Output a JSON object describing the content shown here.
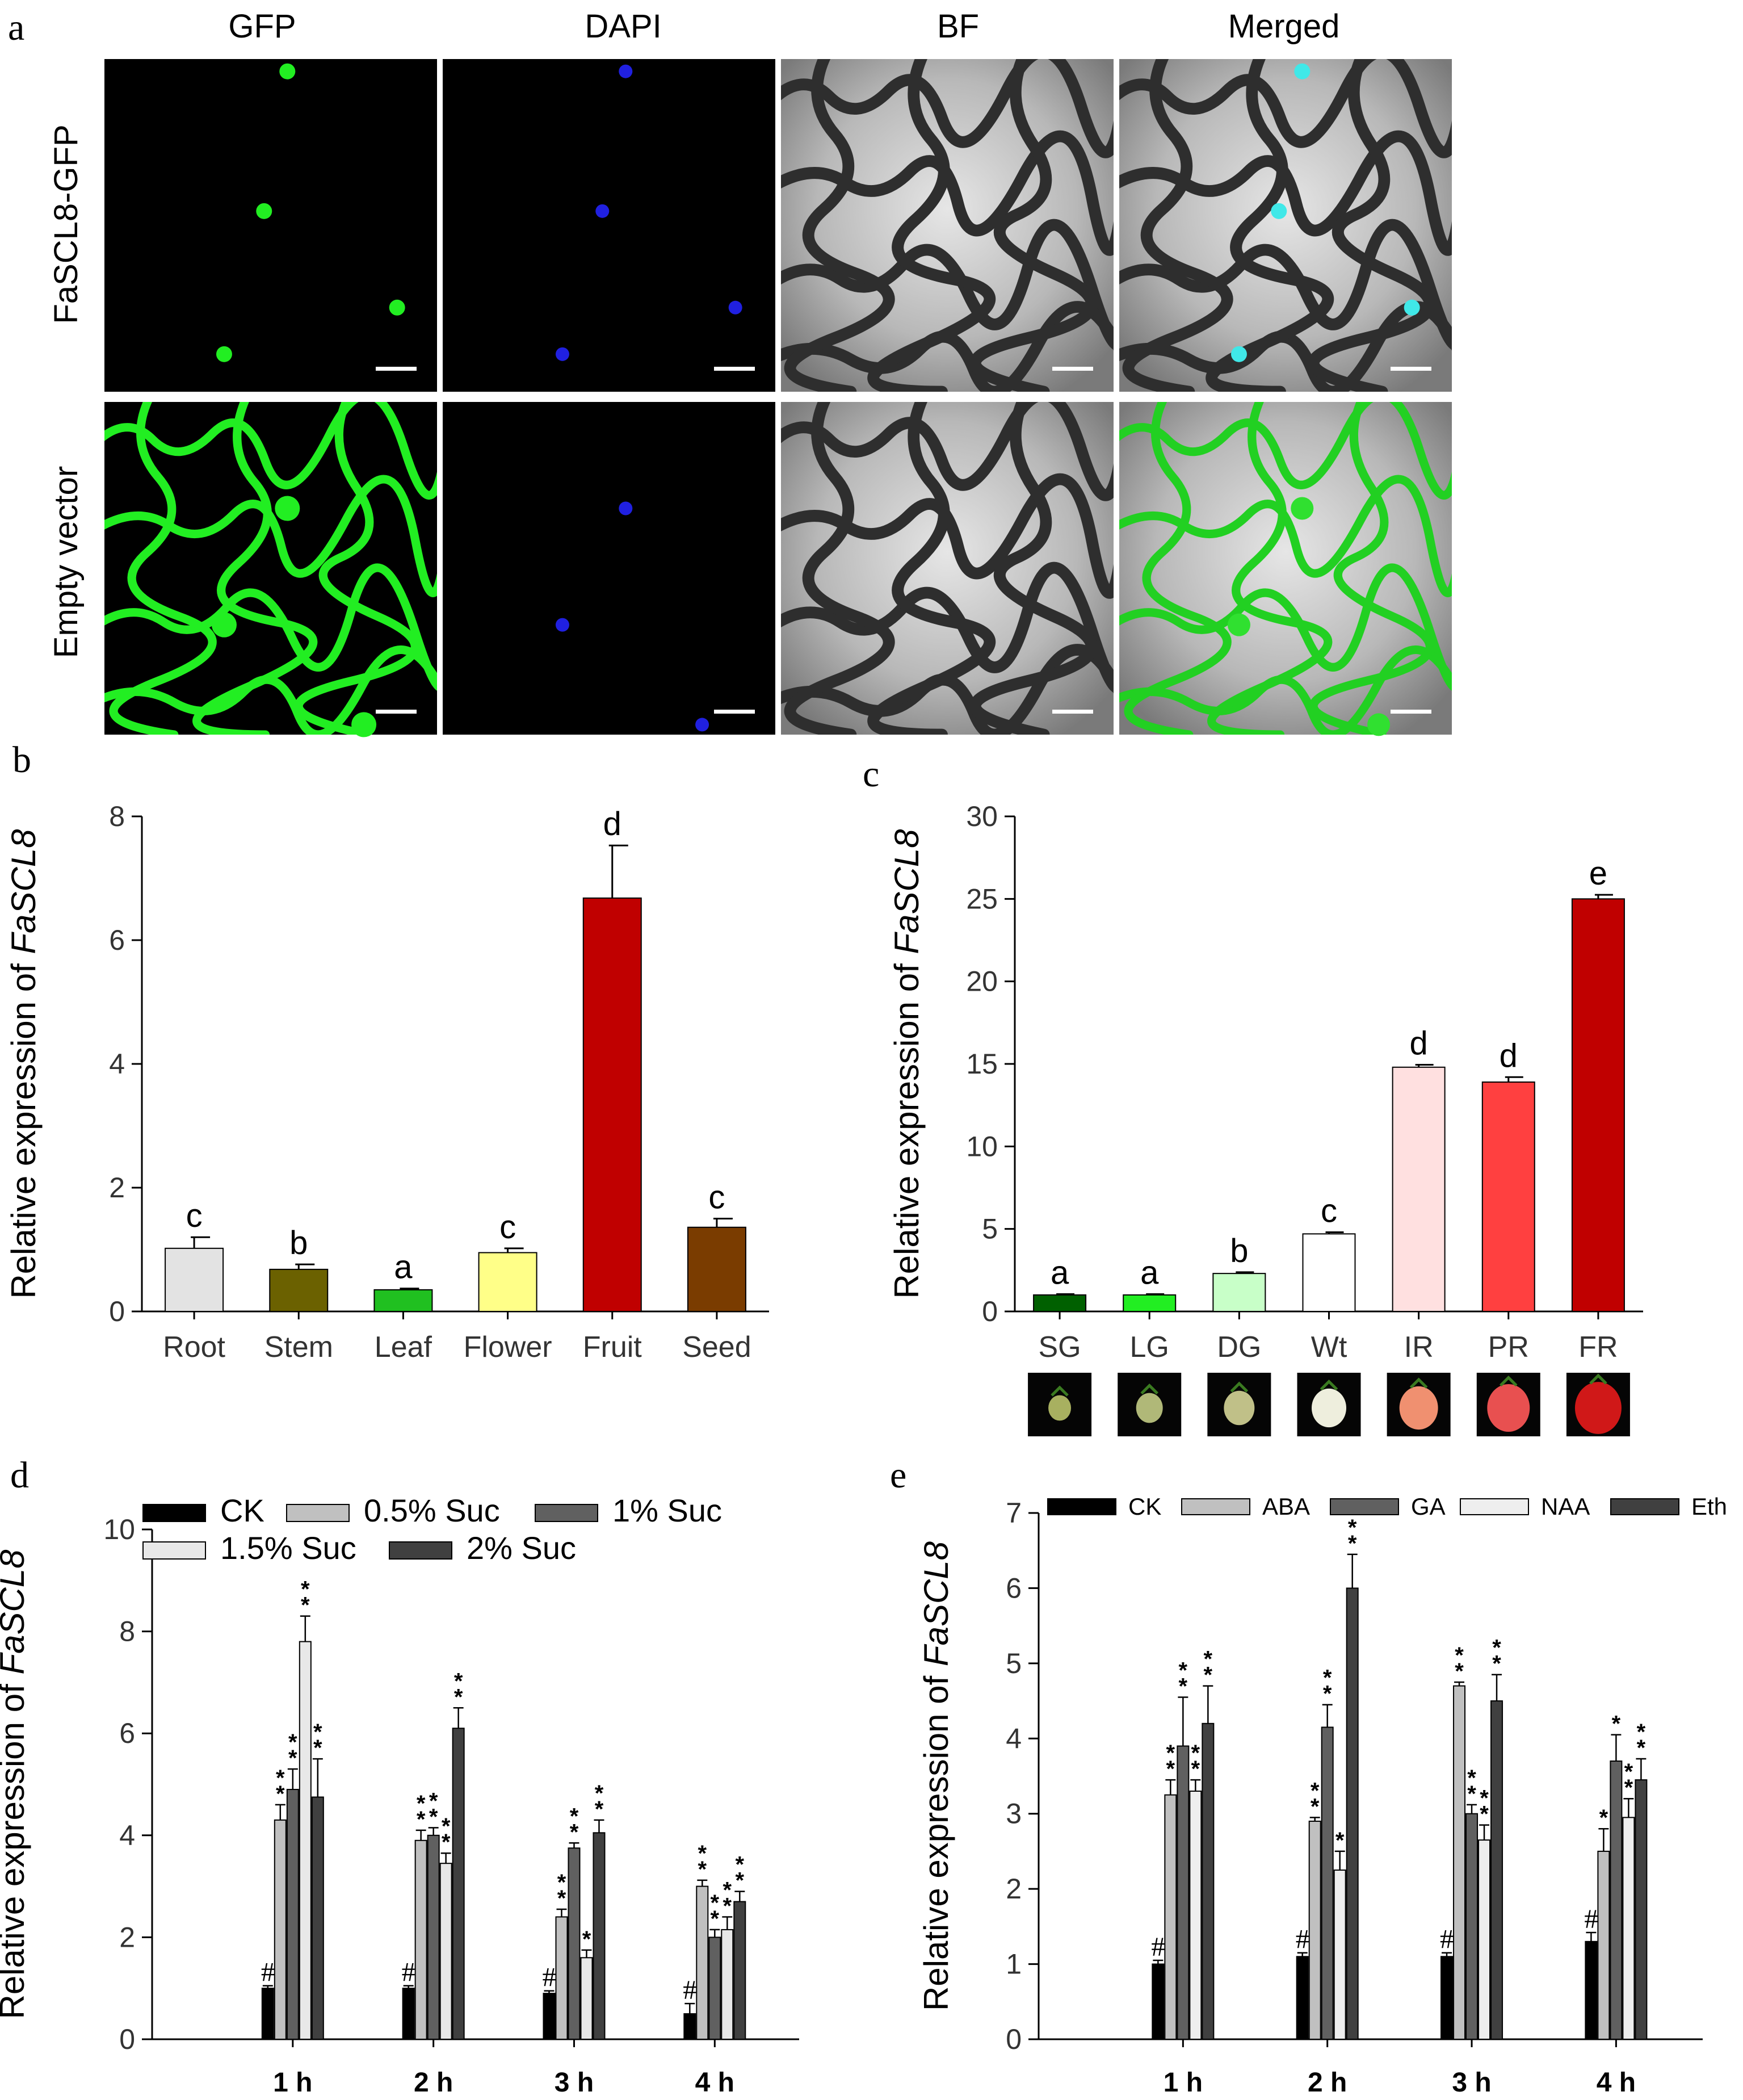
{
  "panel_labels": {
    "a": "a",
    "b": "b",
    "c": "c",
    "d": "d",
    "e": "e"
  },
  "panel_a": {
    "column_headers": [
      "GFP",
      "DAPI",
      "BF",
      "Merged"
    ],
    "row_labels": [
      "FaSCL8-GFP",
      "Empty vector"
    ],
    "colors": {
      "gfp": "#22ee22",
      "dapi": "#2020e0",
      "merged_nucleus": "#40e8e8",
      "background": "#000000"
    }
  },
  "chart_data": [
    {
      "id": "b",
      "type": "bar",
      "ylabel_prefix": "Relative expression of ",
      "ylabel_italic": "FaSCL8",
      "categories": [
        "Root",
        "Stem",
        "Leaf",
        "Flower",
        "Fruit",
        "Seed"
      ],
      "values": [
        1.02,
        0.68,
        0.35,
        0.95,
        6.68,
        1.36
      ],
      "errors": [
        0.18,
        0.08,
        0.02,
        0.07,
        0.85,
        0.14
      ],
      "letters": [
        "c",
        "b",
        "a",
        "c",
        "d",
        "c"
      ],
      "colors": [
        "#e3e3e3",
        "#6b6100",
        "#20c020",
        "#ffff88",
        "#c00000",
        "#7a3c00"
      ],
      "ylim": [
        0,
        8
      ],
      "yticks": [
        "0",
        "2",
        "4",
        "6",
        "8"
      ]
    },
    {
      "id": "c",
      "type": "bar",
      "ylabel_prefix": "Relative expression of ",
      "ylabel_italic": "FaSCL8",
      "categories": [
        "SG",
        "LG",
        "DG",
        "Wt",
        "IR",
        "PR",
        "FR"
      ],
      "values": [
        1.0,
        1.0,
        2.3,
        4.7,
        14.8,
        13.9,
        25.0
      ],
      "errors": [
        0.05,
        0.05,
        0.08,
        0.1,
        0.15,
        0.3,
        0.25
      ],
      "letters": [
        "a",
        "a",
        "b",
        "c",
        "d",
        "d",
        "e"
      ],
      "colors": [
        "#006000",
        "#22ee22",
        "#c8ffc8",
        "#ffffff",
        "#ffe0e0",
        "#ff4040",
        "#c00000"
      ],
      "ylim": [
        0,
        30
      ],
      "yticks": [
        "0",
        "5",
        "10",
        "15",
        "20",
        "25",
        "30"
      ],
      "fruit_colors": [
        "#a8b060",
        "#b0b878",
        "#c0c088",
        "#eeeedd",
        "#f09070",
        "#e85050",
        "#d01818"
      ]
    },
    {
      "id": "d",
      "type": "bar",
      "ylabel_prefix": "Relative expression of ",
      "ylabel_italic": "FaSCL8",
      "categories": [
        "1 h",
        "2 h",
        "3 h",
        "4 h"
      ],
      "series": [
        {
          "name": "CK",
          "color": "#000000",
          "values": [
            1.0,
            1.0,
            0.9,
            0.5
          ],
          "errors": [
            0.05,
            0.05,
            0.05,
            0.2
          ],
          "marks": [
            "#",
            "#",
            "#",
            "#"
          ]
        },
        {
          "name": "0.5% Suc",
          "color": "#c0c0c0",
          "values": [
            4.3,
            3.9,
            2.4,
            3.0
          ],
          "errors": [
            0.3,
            0.2,
            0.15,
            0.12
          ],
          "marks": [
            "**",
            "**",
            "**",
            "**"
          ]
        },
        {
          "name": "1% Suc",
          "color": "#606060",
          "values": [
            4.9,
            4.0,
            3.75,
            2.0
          ],
          "errors": [
            0.4,
            0.15,
            0.1,
            0.15
          ],
          "marks": [
            "**",
            "**",
            "**",
            "**"
          ]
        },
        {
          "name": "1.5% Suc",
          "color": "#e8e8e8",
          "values": [
            7.8,
            3.45,
            1.6,
            2.15
          ],
          "errors": [
            0.5,
            0.2,
            0.15,
            0.25
          ],
          "marks": [
            "**",
            "**",
            "*",
            "**"
          ]
        },
        {
          "name": "2% Suc",
          "color": "#404040",
          "values": [
            4.75,
            6.1,
            4.05,
            2.7
          ],
          "errors": [
            0.75,
            0.4,
            0.25,
            0.2
          ],
          "marks": [
            "**",
            "**",
            "**",
            "**"
          ]
        }
      ],
      "legend_text": [
        "CK",
        "0.5% Suc",
        "1% Suc",
        "1.5% Suc",
        "2% Suc"
      ],
      "ylim": [
        0,
        10
      ],
      "yticks": [
        "0",
        "2",
        "4",
        "6",
        "8",
        "10"
      ]
    },
    {
      "id": "e",
      "type": "bar",
      "ylabel_prefix": "Relative expression of ",
      "ylabel_italic": "FaSCL8",
      "categories": [
        "1 h",
        "2 h",
        "3 h",
        "4 h"
      ],
      "series": [
        {
          "name": "CK",
          "color": "#000000",
          "values": [
            1.0,
            1.1,
            1.1,
            1.3
          ],
          "errors": [
            0.05,
            0.05,
            0.05,
            0.12
          ],
          "marks": [
            "#",
            "#",
            "#",
            "#"
          ]
        },
        {
          "name": "ABA",
          "color": "#c0c0c0",
          "values": [
            3.25,
            2.9,
            4.7,
            2.5
          ],
          "errors": [
            0.2,
            0.05,
            0.05,
            0.3
          ],
          "marks": [
            "**",
            "**",
            "**",
            "*"
          ]
        },
        {
          "name": "GA",
          "color": "#606060",
          "values": [
            3.9,
            4.15,
            3.0,
            3.7
          ],
          "errors": [
            0.65,
            0.3,
            0.12,
            0.35
          ],
          "marks": [
            "**",
            "**",
            "**",
            "*"
          ]
        },
        {
          "name": "NAA",
          "color": "#eeeeee",
          "values": [
            3.3,
            2.25,
            2.65,
            2.95
          ],
          "errors": [
            0.15,
            0.25,
            0.2,
            0.25
          ],
          "marks": [
            "**",
            "*",
            "**",
            "**"
          ]
        },
        {
          "name": "Eth",
          "color": "#404040",
          "values": [
            4.2,
            6.0,
            4.5,
            3.45
          ],
          "errors": [
            0.5,
            0.45,
            0.35,
            0.28
          ],
          "marks": [
            "**",
            "**",
            "**",
            "**"
          ]
        }
      ],
      "legend_text": [
        "CK",
        "ABA",
        "GA",
        "NAA",
        "Eth"
      ],
      "ylim": [
        0,
        7
      ],
      "yticks": [
        "0",
        "1",
        "2",
        "3",
        "4",
        "5",
        "6",
        "7"
      ]
    }
  ]
}
